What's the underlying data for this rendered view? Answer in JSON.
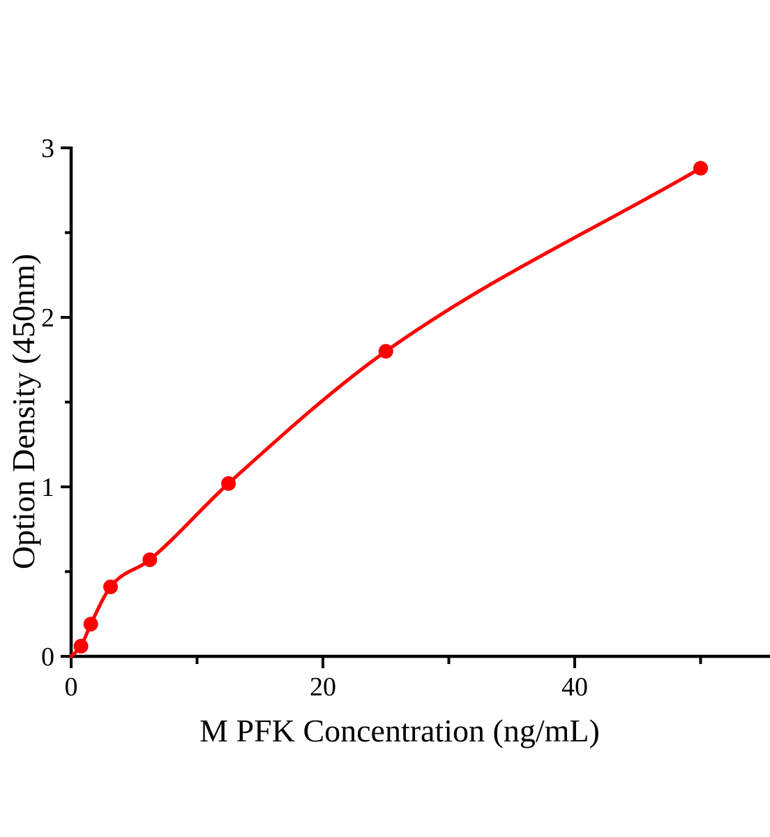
{
  "figure": {
    "background": "#ffffff"
  },
  "chart_data": {
    "type": "scatter",
    "subtype": "standard-curve-with-fitted-line",
    "title": "",
    "xlabel": "M PFK Concentration (ng/mL)",
    "ylabel": "Option Density (450nm)",
    "points": [
      {
        "x": 0.78,
        "y": 0.06
      },
      {
        "x": 1.56,
        "y": 0.19
      },
      {
        "x": 3.13,
        "y": 0.41
      },
      {
        "x": 6.25,
        "y": 0.57
      },
      {
        "x": 12.5,
        "y": 1.02
      },
      {
        "x": 25,
        "y": 1.8
      },
      {
        "x": 50,
        "y": 2.88
      }
    ],
    "curve_start": {
      "x": 0,
      "y": 0
    },
    "xlim": [
      0,
      55.5
    ],
    "ylim": [
      0,
      3
    ],
    "x_major_ticks": [
      0,
      20,
      40
    ],
    "x_tick_labels": [
      "0",
      "20",
      "40"
    ],
    "x_minor_ticks": [
      10,
      30,
      50
    ],
    "y_major_ticks": [
      0,
      1,
      2,
      3
    ],
    "y_tick_labels": [
      "0",
      "1",
      "2",
      "3"
    ],
    "y_minor_ticks": [
      0.5,
      1.5,
      2.5
    ],
    "grid": false,
    "legend_position": "none",
    "line_color": "#ff0000",
    "marker_color": "#ff0000",
    "axis_color": "#000000",
    "text_color": "#000000"
  }
}
